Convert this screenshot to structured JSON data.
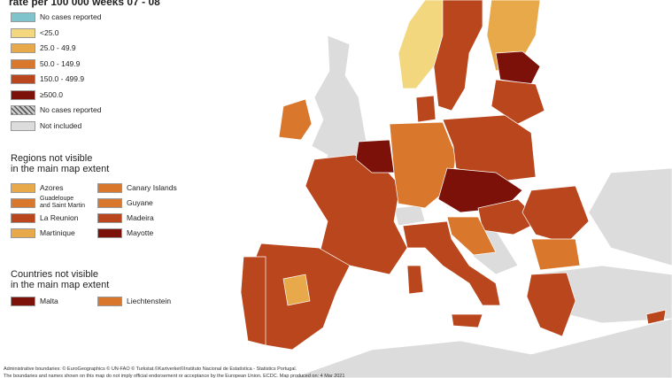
{
  "title": "rate per 100 000 weeks  07 - 08",
  "legend": [
    {
      "label": "No cases reported",
      "color": "#7fc4cc"
    },
    {
      "label": "<25.0",
      "color": "#f2d77e"
    },
    {
      "label": "25.0 - 49.9",
      "color": "#e8a94a"
    },
    {
      "label": "50.0 - 149.9",
      "color": "#d9772d"
    },
    {
      "label": "150.0 - 499.9",
      "color": "#b9461c"
    },
    {
      "label": "≥500.0",
      "color": "#7b1109"
    },
    {
      "label": "No cases reported",
      "color": "#9a9a9a",
      "hatch": true
    },
    {
      "label": "Not included",
      "color": "#dcdcdc"
    }
  ],
  "regions": {
    "heading": "Regions not visible\nin the main map extent",
    "items": [
      {
        "label": "Azores",
        "color": "#e8a94a"
      },
      {
        "label": "Canary Islands",
        "color": "#d9772d"
      },
      {
        "label": "Guadeloupe\nand Saint Martin",
        "color": "#d9772d"
      },
      {
        "label": "Guyane",
        "color": "#d9772d"
      },
      {
        "label": "La Reunion",
        "color": "#b9461c"
      },
      {
        "label": "Madeira",
        "color": "#b9461c"
      },
      {
        "label": "Martinique",
        "color": "#e8a94a"
      },
      {
        "label": "Mayotte",
        "color": "#7b1109"
      }
    ]
  },
  "countries": {
    "heading": "Countries not visible\nin the main map extent",
    "items": [
      {
        "label": "Malta",
        "color": "#7b1109"
      },
      {
        "label": "Liechtenstein",
        "color": "#d9772d"
      }
    ]
  },
  "footer": [
    "Administrative boundaries: © EuroGeographics © UN-FAO © Turkstat.©Kartverket©Instituto Nacional de Estatística - Statistics Portugal.",
    "The boundaries and names shown on this map do not imply official endorsement or acceptance by the European Union. ECDC. Map produced on: 4 Mar 2021"
  ]
}
